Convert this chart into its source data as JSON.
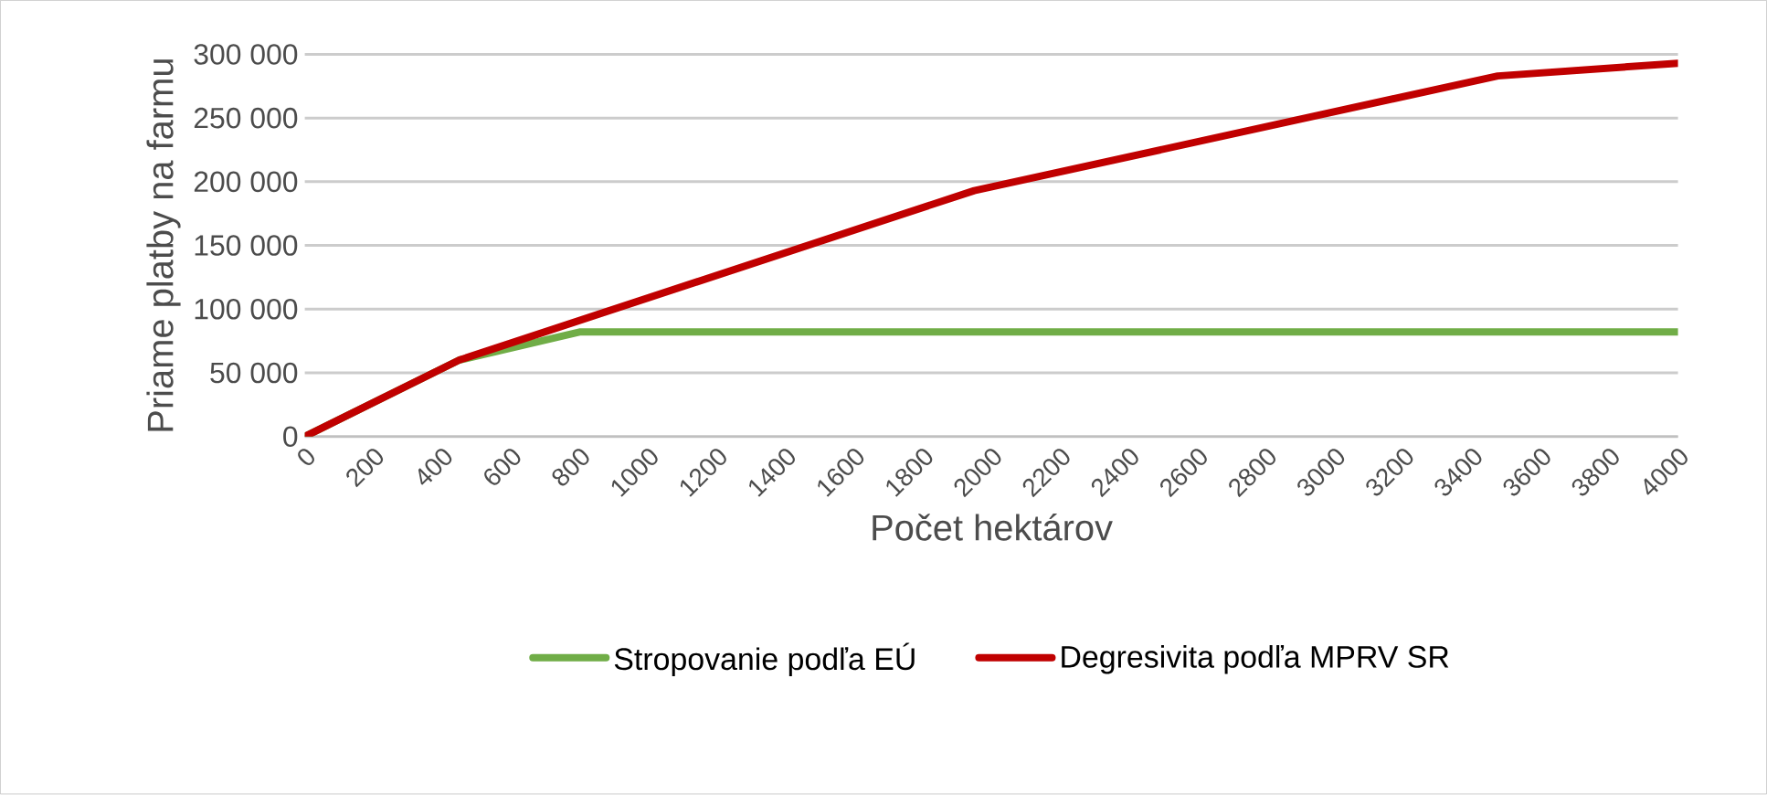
{
  "chart_data": {
    "type": "line",
    "xlabel": "Počet hektárov",
    "ylabel": "Priame platby na farmu",
    "xlim": [
      0,
      4000
    ],
    "xticks": [
      0,
      200,
      400,
      600,
      800,
      1000,
      1200,
      1400,
      1600,
      1800,
      2000,
      2200,
      2400,
      2600,
      2800,
      3000,
      3200,
      3400,
      3600,
      3800,
      4000
    ],
    "ylim": [
      0,
      300000
    ],
    "yticks": [
      {
        "value": 0,
        "label": "0"
      },
      {
        "value": 50000,
        "label": "50 000"
      },
      {
        "value": 100000,
        "label": "100 000"
      },
      {
        "value": 150000,
        "label": "150 000"
      },
      {
        "value": 200000,
        "label": "200 000"
      },
      {
        "value": 250000,
        "label": "250 000"
      },
      {
        "value": 300000,
        "label": "300 000"
      }
    ],
    "grid": "y",
    "legend": "bottom",
    "marker": "none",
    "line_style": "solid",
    "series": [
      {
        "name": "Stropovanie podľa EÚ",
        "color": "#70ad47",
        "x": [
          0,
          450,
          800,
          4000
        ],
        "values": [
          0,
          60000,
          82000,
          82000
        ]
      },
      {
        "name": "Degresivita podľa MPRV SR",
        "color": "#c00000",
        "x": [
          0,
          450,
          1950,
          3475,
          4000
        ],
        "values": [
          0,
          60000,
          193000,
          283000,
          293000
        ]
      }
    ]
  }
}
